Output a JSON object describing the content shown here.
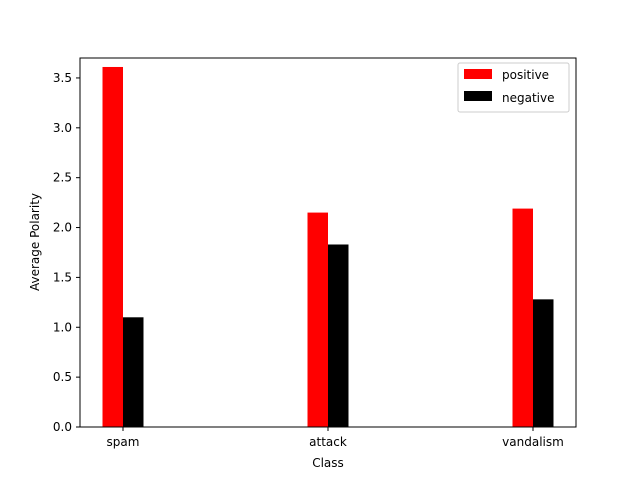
{
  "chart_data": {
    "type": "bar",
    "categories": [
      "spam",
      "attack",
      "vandalism"
    ],
    "series": [
      {
        "name": "positive",
        "values": [
          3.61,
          2.15,
          2.19
        ],
        "color": "#ff0000"
      },
      {
        "name": "negative",
        "values": [
          1.1,
          1.83,
          1.28
        ],
        "color": "#000000"
      }
    ],
    "xlabel": "Class",
    "ylabel": "Average Polarity",
    "ylim": [
      0.0,
      3.7
    ],
    "yticks": [
      "0.0",
      "0.5",
      "1.0",
      "1.5",
      "2.0",
      "2.5",
      "3.0",
      "3.5"
    ],
    "grid": false,
    "legend_position": "top-right"
  }
}
